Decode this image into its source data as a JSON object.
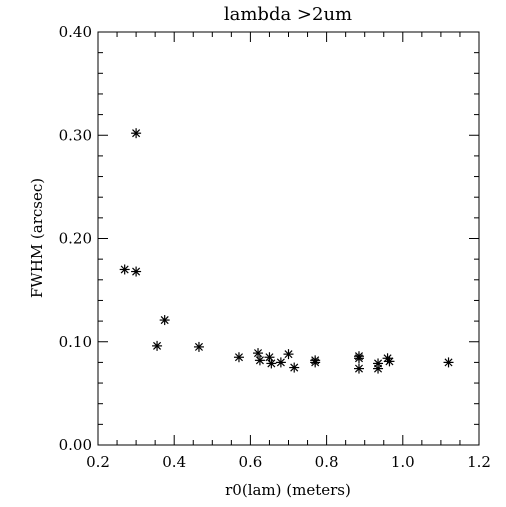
{
  "chart_data": {
    "type": "scatter",
    "title": "lambda >2um",
    "xlabel": "r0(lam) (meters)",
    "ylabel": "FWHM (arcsec)",
    "xlim": [
      0.2,
      1.2
    ],
    "ylim": [
      0.0,
      0.4
    ],
    "x_ticks": [
      0.2,
      0.4,
      0.6,
      0.8,
      1.0,
      1.2
    ],
    "x_tick_labels": [
      "0.2",
      "0.4",
      "0.6",
      "0.8",
      "1.0",
      "1.2"
    ],
    "y_ticks": [
      0.0,
      0.1,
      0.2,
      0.3,
      0.4
    ],
    "y_tick_labels": [
      "0.00",
      "0.10",
      "0.20",
      "0.30",
      "0.40"
    ],
    "x_minor_step": 0.05,
    "y_minor_step": 0.02,
    "grid": false,
    "legend": "none",
    "marker": "asterisk",
    "color": "#000000",
    "points": [
      {
        "x": 0.27,
        "y": 0.17
      },
      {
        "x": 0.3,
        "y": 0.302
      },
      {
        "x": 0.3,
        "y": 0.168
      },
      {
        "x": 0.355,
        "y": 0.096
      },
      {
        "x": 0.375,
        "y": 0.121
      },
      {
        "x": 0.465,
        "y": 0.095
      },
      {
        "x": 0.57,
        "y": 0.085
      },
      {
        "x": 0.62,
        "y": 0.089
      },
      {
        "x": 0.625,
        "y": 0.082
      },
      {
        "x": 0.65,
        "y": 0.085
      },
      {
        "x": 0.655,
        "y": 0.079
      },
      {
        "x": 0.68,
        "y": 0.08
      },
      {
        "x": 0.7,
        "y": 0.088
      },
      {
        "x": 0.715,
        "y": 0.075
      },
      {
        "x": 0.77,
        "y": 0.082
      },
      {
        "x": 0.77,
        "y": 0.08
      },
      {
        "x": 0.885,
        "y": 0.086
      },
      {
        "x": 0.885,
        "y": 0.084
      },
      {
        "x": 0.885,
        "y": 0.074
      },
      {
        "x": 0.935,
        "y": 0.079
      },
      {
        "x": 0.935,
        "y": 0.074
      },
      {
        "x": 0.96,
        "y": 0.084
      },
      {
        "x": 0.965,
        "y": 0.081
      },
      {
        "x": 1.12,
        "y": 0.08
      }
    ]
  }
}
